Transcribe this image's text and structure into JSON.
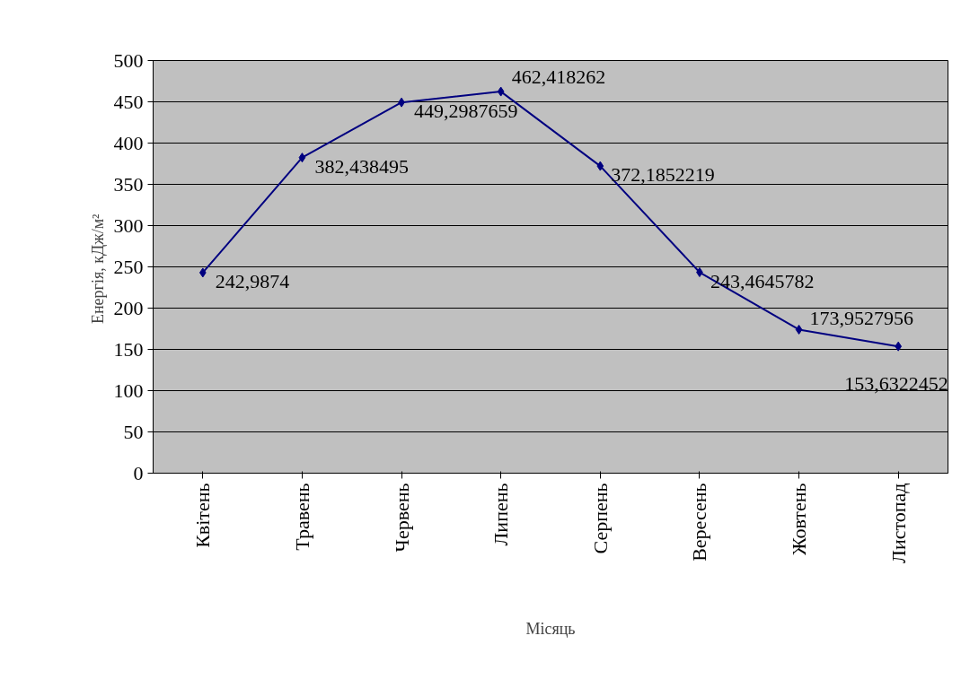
{
  "chart_data": {
    "type": "line",
    "xlabel": "Місяць",
    "ylabel": "Енергія,  кДж/м²",
    "categories": [
      "Квітень",
      "Травень",
      "Червень",
      "Липень",
      "Серпень",
      "Вересень",
      "Жовтень",
      "Листопад"
    ],
    "values": [
      242.9874,
      382.438495,
      449.2987659,
      462.418262,
      372.1852219,
      243.4645782,
      173.9527956,
      153.6322452
    ],
    "value_labels": [
      "242,9874",
      "382,438495",
      "449,2987659",
      "462,418262",
      "372,1852219",
      "243,4645782",
      "173,9527956",
      "153,6322452"
    ],
    "color": "#000080",
    "marker": "diamond",
    "line_style": "solid",
    "ylim": [
      0,
      500
    ],
    "yticks": [
      0,
      50,
      100,
      150,
      200,
      250,
      300,
      350,
      400,
      450,
      500
    ],
    "grid": "y"
  }
}
